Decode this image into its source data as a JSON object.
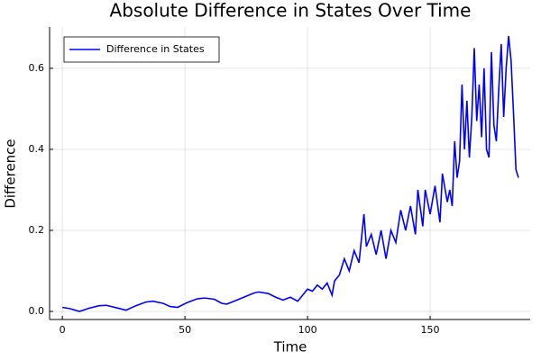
{
  "chart_data": {
    "type": "line",
    "title": "Absolute Difference in States Over Time",
    "xlabel": "Time",
    "ylabel": "Difference",
    "x": [
      0,
      3,
      7,
      11,
      15,
      18,
      22,
      26,
      30,
      34,
      37,
      41,
      44,
      47,
      51,
      55,
      58,
      62,
      65,
      67,
      70,
      74,
      78,
      80,
      84,
      87,
      90,
      93,
      96,
      98,
      100,
      102,
      104,
      106,
      108,
      110,
      111,
      113,
      115,
      117,
      119,
      121,
      123,
      124,
      126,
      128,
      130,
      132,
      134,
      136,
      138,
      140,
      142,
      144,
      145,
      147,
      148,
      150,
      152,
      154,
      155,
      157,
      158,
      159,
      160,
      161,
      162,
      163,
      164,
      165,
      166,
      167,
      168,
      169,
      170,
      171,
      172,
      173,
      174,
      175,
      176,
      177,
      178,
      179,
      180,
      181,
      182,
      183,
      184,
      185,
      186
    ],
    "series": [
      {
        "name": "Difference in States",
        "color": "#0000ff",
        "values": [
          0.01,
          0.007,
          0.0,
          0.008,
          0.014,
          0.015,
          0.009,
          0.003,
          0.014,
          0.023,
          0.025,
          0.02,
          0.012,
          0.01,
          0.022,
          0.031,
          0.033,
          0.03,
          0.02,
          0.018,
          0.025,
          0.035,
          0.045,
          0.048,
          0.044,
          0.035,
          0.028,
          0.035,
          0.025,
          0.04,
          0.055,
          0.05,
          0.065,
          0.055,
          0.07,
          0.04,
          0.075,
          0.09,
          0.13,
          0.1,
          0.15,
          0.12,
          0.24,
          0.16,
          0.19,
          0.14,
          0.2,
          0.13,
          0.2,
          0.17,
          0.25,
          0.2,
          0.26,
          0.19,
          0.3,
          0.21,
          0.3,
          0.24,
          0.31,
          0.22,
          0.34,
          0.27,
          0.3,
          0.26,
          0.42,
          0.33,
          0.37,
          0.56,
          0.4,
          0.52,
          0.38,
          0.48,
          0.65,
          0.47,
          0.56,
          0.43,
          0.6,
          0.4,
          0.38,
          0.64,
          0.46,
          0.42,
          0.55,
          0.66,
          0.48,
          0.6,
          0.68,
          0.62,
          0.49,
          0.35,
          0.33
        ]
      }
    ],
    "xlim": [
      -5.2,
      190.8
    ],
    "xticks": [
      0,
      50,
      100,
      150
    ],
    "ylim": [
      -0.02,
      0.702
    ],
    "yticks": [
      {
        "value": 0,
        "label": "0.0"
      },
      0.2,
      0.4,
      0.6
    ],
    "grid": true,
    "legend": "upper left"
  }
}
